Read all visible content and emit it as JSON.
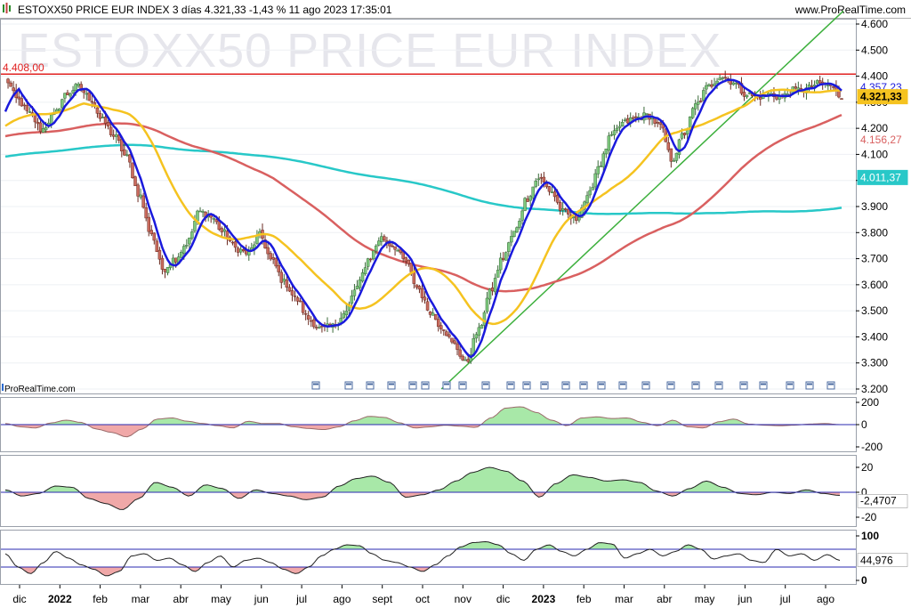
{
  "header": {
    "title": "ESTOXX50 PRICE EUR INDEX 3 días 4.321,33 -1,43 % 11 ago 2023 17:35:01",
    "site": "www.ProRealTime.com",
    "watermark": "ESTOXX50 PRICE EUR INDEX",
    "brand": "ProRealTime.com",
    "brand_icon": "bar-chart-icon"
  },
  "colors": {
    "candle_up": "#7ec97e",
    "candle_down": "#c96b5e",
    "ma_fast": "#1a1adc",
    "ma_mid": "#f5c320",
    "ma_slow": "#d96060",
    "ma_long": "#28c8c8",
    "trendline": "#3db03d",
    "resistance": "#e02020",
    "osc_pos": "#a8e8a8",
    "osc_neg": "#f0a8a8"
  },
  "chart_data": [
    {
      "type": "candlestick",
      "title": "ESTOXX50 PRICE EUR INDEX",
      "ylim": [
        3200,
        4600
      ],
      "yticks": [
        "4.600",
        "4.500",
        "4.400",
        "4.300",
        "4.200",
        "4.100",
        "4.000",
        "3.900",
        "3.800",
        "3.700",
        "3.600",
        "3.500",
        "3.400",
        "3.300",
        "3.200"
      ],
      "ytick_values": [
        4600,
        4500,
        4400,
        4300,
        4200,
        4100,
        4000,
        3900,
        3800,
        3700,
        3600,
        3500,
        3400,
        3300,
        3200
      ],
      "x_labels": [
        "dic",
        "2022",
        "feb",
        "mar",
        "abr",
        "may",
        "jun",
        "jul",
        "ago",
        "sept",
        "oct",
        "nov",
        "dic",
        "2023",
        "feb",
        "mar",
        "abr",
        "may",
        "jun",
        "jul",
        "ago"
      ],
      "x_label_bold": [
        false,
        true,
        false,
        false,
        false,
        false,
        false,
        false,
        false,
        false,
        false,
        false,
        false,
        true,
        false,
        false,
        false,
        false,
        false,
        false,
        false
      ],
      "close_series": [
        4390,
        4310,
        4255,
        4195,
        4250,
        4330,
        4360,
        4315,
        4230,
        4170,
        4090,
        3950,
        3800,
        3660,
        3700,
        3760,
        3880,
        3860,
        3800,
        3740,
        3720,
        3790,
        3690,
        3610,
        3545,
        3470,
        3430,
        3440,
        3490,
        3590,
        3700,
        3780,
        3750,
        3690,
        3590,
        3500,
        3440,
        3370,
        3300,
        3420,
        3570,
        3700,
        3800,
        3930,
        4010,
        3960,
        3880,
        3850,
        3930,
        4060,
        4170,
        4220,
        4240,
        4250,
        4210,
        4080,
        4180,
        4290,
        4360,
        4400,
        4380,
        4335,
        4320,
        4330,
        4320,
        4345,
        4350,
        4370,
        4365,
        4320
      ],
      "levels": {
        "resistance": "4.408,00"
      },
      "price_boxes": [
        {
          "value": "4.357,23",
          "color": "#1a1adc",
          "bg": "#ffffff"
        },
        {
          "value": "4.321,33",
          "color": "#000000",
          "bg": "#f5c320"
        },
        {
          "value": "4.156,27",
          "color": "#d96060",
          "bg": "#ffffff"
        },
        {
          "value": "4.011,37",
          "color": "#ffffff",
          "bg": "#28c8c8"
        }
      ],
      "box_values": [
        4357.23,
        4321.33,
        4156.27,
        4011.37
      ]
    },
    {
      "type": "area",
      "ylim": [
        -200,
        200
      ],
      "yticks": [
        "200",
        "0",
        "-200"
      ],
      "ytick_values": [
        200,
        0,
        -200
      ],
      "values": [
        10,
        -20,
        -30,
        15,
        40,
        20,
        -40,
        -70,
        -110,
        -40,
        50,
        60,
        30,
        10,
        -10,
        -30,
        30,
        10,
        10,
        -20,
        -35,
        -45,
        -20,
        35,
        75,
        65,
        15,
        -30,
        -20,
        -5,
        -15,
        -25,
        60,
        150,
        160,
        110,
        40,
        -10,
        60,
        70,
        55,
        60,
        20,
        -10,
        40,
        -20,
        -30,
        25,
        50,
        5,
        -5,
        -10,
        -5,
        5,
        10,
        0
      ]
    },
    {
      "type": "area",
      "ylim": [
        -25,
        25
      ],
      "yticks": [
        "20",
        "0",
        "-20"
      ],
      "ytick_values": [
        20,
        0,
        -20
      ],
      "readout": "-2,4707",
      "readout_value": -2.4707,
      "values": [
        2,
        -3,
        -1,
        5,
        4,
        -5,
        -9,
        -14,
        -5,
        8,
        4,
        -3,
        6,
        3,
        -5,
        2,
        -1,
        -3,
        -6,
        -4,
        5,
        11,
        13,
        8,
        -4,
        -2,
        2,
        9,
        16,
        20,
        17,
        9,
        -4,
        7,
        14,
        12,
        9,
        10,
        8,
        1,
        -3,
        3,
        9,
        4,
        -1,
        -2,
        0,
        -1,
        2,
        -1,
        -2.47
      ]
    },
    {
      "type": "line",
      "ylim": [
        0,
        100
      ],
      "yticks": [
        "100",
        "0"
      ],
      "ytick_values": [
        100,
        0
      ],
      "bands": [
        70,
        30
      ],
      "readout": "44,976",
      "readout_value": 44.976,
      "values": [
        60,
        30,
        15,
        40,
        65,
        50,
        35,
        25,
        10,
        20,
        55,
        60,
        45,
        50,
        35,
        20,
        40,
        55,
        30,
        45,
        50,
        40,
        25,
        15,
        30,
        55,
        70,
        80,
        78,
        60,
        45,
        40,
        30,
        20,
        35,
        55,
        75,
        85,
        87,
        80,
        60,
        45,
        70,
        80,
        65,
        55,
        70,
        85,
        82,
        50,
        60,
        70,
        55,
        65,
        80,
        70,
        48,
        55,
        60,
        45,
        40,
        70,
        55,
        60,
        45,
        58,
        45
      ]
    }
  ]
}
